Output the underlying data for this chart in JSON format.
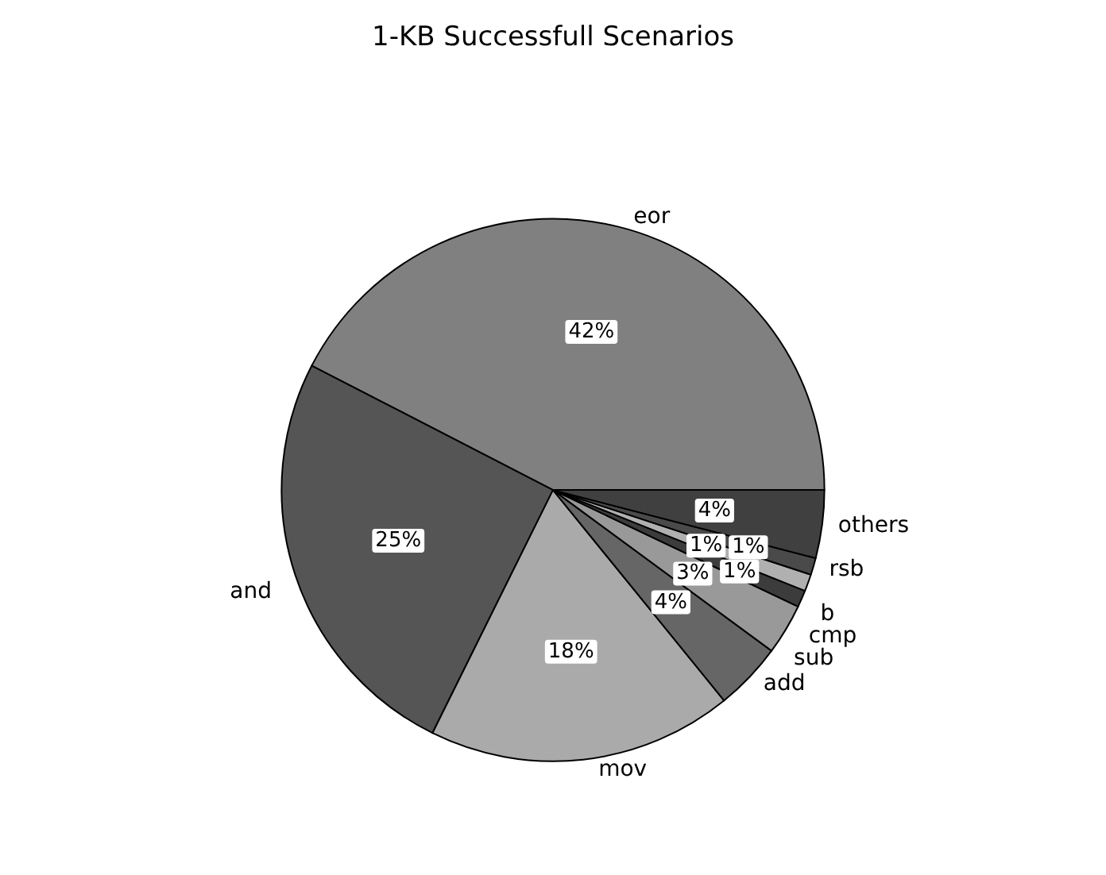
{
  "chart_data": {
    "type": "pie",
    "title": "1-KB Successfull Scenarios",
    "categories": [
      "eor",
      "and",
      "mov",
      "add",
      "sub",
      "cmp",
      "b",
      "rsb",
      "others"
    ],
    "values": [
      42,
      25,
      18,
      4,
      3,
      1,
      1,
      1,
      4
    ],
    "colors": [
      "#808080",
      "#555555",
      "#aaaaaa",
      "#666666",
      "#999999",
      "#3c3c3c",
      "#b0b0b0",
      "#4a4a4a",
      "#404040"
    ],
    "value_labels": [
      "42%",
      "25%",
      "18%",
      "4%",
      "3%",
      "1%",
      "1%",
      "1%",
      "4%"
    ]
  }
}
